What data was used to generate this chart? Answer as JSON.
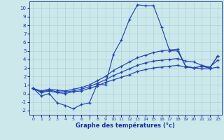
{
  "xlabel": "Graphe des températures (°c)",
  "background_color": "#cce8ea",
  "grid_color": "#aad4d6",
  "line_color": "#2244bb",
  "hours": [
    0,
    1,
    2,
    3,
    4,
    5,
    6,
    7,
    8,
    9,
    10,
    11,
    12,
    13,
    14,
    15,
    16,
    17,
    18,
    19,
    20,
    21,
    22,
    23
  ],
  "curve_main": [
    0.6,
    -0.3,
    0.0,
    -1.1,
    -1.4,
    -1.8,
    -1.3,
    -1.1,
    1.1,
    1.0,
    4.6,
    6.3,
    8.7,
    10.4,
    10.3,
    10.3,
    7.8,
    5.0,
    5.0,
    3.2,
    3.0,
    3.2,
    3.0,
    4.4
  ],
  "curve_high": [
    0.6,
    0.3,
    0.5,
    0.4,
    0.3,
    0.5,
    0.7,
    1.0,
    1.5,
    2.0,
    2.7,
    3.2,
    3.7,
    4.2,
    4.5,
    4.8,
    5.0,
    5.1,
    5.2,
    3.2,
    3.0,
    3.2,
    3.0,
    4.4
  ],
  "curve_mid": [
    0.6,
    0.2,
    0.4,
    0.2,
    0.2,
    0.3,
    0.5,
    0.8,
    1.2,
    1.6,
    2.1,
    2.5,
    2.9,
    3.3,
    3.6,
    3.8,
    3.9,
    4.0,
    4.1,
    3.8,
    3.7,
    3.3,
    3.1,
    3.9
  ],
  "curve_low": [
    0.6,
    0.1,
    0.3,
    0.1,
    0.0,
    0.2,
    0.3,
    0.6,
    0.9,
    1.3,
    1.6,
    1.9,
    2.2,
    2.6,
    2.8,
    3.0,
    3.1,
    3.2,
    3.3,
    3.1,
    3.0,
    2.9,
    2.9,
    3.1
  ],
  "ylim": [
    -2.5,
    10.8
  ],
  "xlim": [
    -0.5,
    23.5
  ],
  "yticks": [
    -2,
    -1,
    0,
    1,
    2,
    3,
    4,
    5,
    6,
    7,
    8,
    9,
    10
  ],
  "xticks": [
    0,
    1,
    2,
    3,
    4,
    5,
    6,
    7,
    8,
    9,
    10,
    11,
    12,
    13,
    14,
    15,
    16,
    17,
    18,
    19,
    20,
    21,
    22,
    23
  ]
}
